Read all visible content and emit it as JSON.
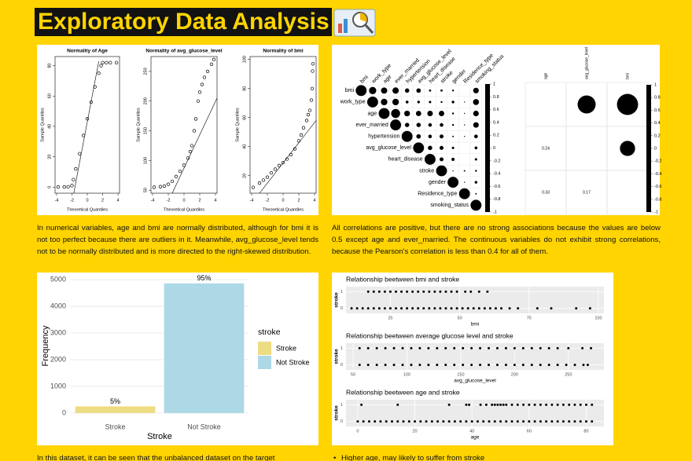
{
  "title": "Exploratory Data Analysis",
  "paragraphs": [
    "In numerical variables, age and bmi are normally distributed, although for bmi it is not too perfect because there are outliers in it. Meanwhile, avg_glucose_level tends not to be normally distributed and is more directed to the right-skewed distribution.",
    "All correlations are positive, but there are no strong associations because the values are below 0.5 except age and ever_married. The continuous variables do not exhibit strong correlations, because the Pearson's correlation is less than 0.4 for all of them.",
    "In this dataset, it can be seen that the unbalanced dataset on the target",
    "Higher age, may likely to suffer from stroke"
  ],
  "chart_data": [
    {
      "type": "qq",
      "title": "Normality of Age",
      "x_label": "Theoretical Quantiles",
      "y_label": "Sample Quantiles",
      "xlim": [
        -4.2,
        4.2
      ],
      "xticks": [
        -4,
        -2,
        0,
        2,
        4
      ],
      "ylim": [
        -4,
        86
      ],
      "yticks": [
        0,
        20,
        40,
        60,
        80
      ],
      "x": [
        -3.8,
        -3,
        -2.5,
        -2,
        -1.8,
        -1.5,
        -1,
        -0.5,
        0,
        0.5,
        1,
        1.5,
        1.8,
        2,
        2.5,
        3,
        3.8
      ],
      "y": [
        0.1,
        0.1,
        0.2,
        1,
        5,
        12,
        22,
        34,
        45,
        56,
        66,
        75,
        80,
        82,
        82,
        82,
        82
      ],
      "ref_line": {
        "x": [
          -1.8,
          1.5
        ],
        "y": [
          -5,
          83
        ]
      }
    },
    {
      "type": "qq",
      "title": "Normality of avg_glucose_level",
      "x_label": "Theoretical Quantiles",
      "y_label": "Sample Quantiles",
      "xlim": [
        -4.2,
        4.2
      ],
      "xticks": [
        -4,
        -2,
        0,
        2,
        4
      ],
      "ylim": [
        45,
        275
      ],
      "yticks": [
        50,
        100,
        150,
        200,
        250
      ],
      "x": [
        -3.8,
        -3,
        -2.5,
        -2,
        -1.5,
        -1,
        -0.5,
        0,
        0.5,
        0.8,
        1,
        1.3,
        1.5,
        1.8,
        2,
        2.3,
        2.6,
        3,
        3.5,
        3.8
      ],
      "y": [
        55,
        56,
        57,
        60,
        65,
        73,
        82,
        92,
        104,
        115,
        125,
        150,
        170,
        200,
        215,
        228,
        240,
        250,
        262,
        270
      ],
      "ref_line": {
        "x": [
          -1.5,
          4.2
        ],
        "y": [
          45,
          205
        ]
      }
    },
    {
      "type": "qq",
      "title": "Normality of bmi",
      "x_label": "Theoretical Quantiles",
      "y_label": "Sample Quantiles",
      "xlim": [
        -4.2,
        4.2
      ],
      "xticks": [
        -4,
        -2,
        0,
        2,
        4
      ],
      "ylim": [
        8,
        102
      ],
      "yticks": [
        20,
        40,
        60,
        80,
        100
      ],
      "x": [
        -3.8,
        -3,
        -2.5,
        -2,
        -1.5,
        -1,
        -0.5,
        0,
        0.5,
        1,
        1.5,
        2,
        2.3,
        2.6,
        3,
        3.2,
        3.4,
        3.6,
        3.7,
        3.75,
        3.8
      ],
      "y": [
        12,
        15,
        17,
        19,
        22,
        24.5,
        27,
        29,
        31.5,
        34.5,
        38.5,
        44,
        48,
        53,
        58,
        62,
        65,
        72,
        80,
        92,
        97
      ],
      "ref_line": {
        "x": [
          -3,
          4.2
        ],
        "y": [
          8,
          58
        ]
      }
    },
    {
      "type": "corrplot",
      "style": "upper",
      "labels": [
        "bmi",
        "work_type",
        "age",
        "ever_married",
        "hypertension",
        "avg_glucose_level",
        "heart_disease",
        "stroke",
        "gender",
        "Residence_type",
        "smoking_status"
      ],
      "matrix": [
        [
          1,
          0.45,
          0.33,
          0.34,
          0.16,
          0.17,
          0.04,
          0.04,
          0.03,
          0.0,
          0.27
        ],
        [
          null,
          1,
          0.36,
          0.36,
          0.07,
          0.06,
          0.05,
          0.03,
          0.06,
          0.01,
          0.3
        ],
        [
          null,
          null,
          1,
          0.68,
          0.28,
          0.24,
          0.26,
          0.25,
          0.03,
          0.01,
          0.27
        ],
        [
          null,
          null,
          null,
          1,
          0.16,
          0.16,
          0.11,
          0.11,
          0.03,
          0.01,
          0.26
        ],
        [
          null,
          null,
          null,
          null,
          1,
          0.17,
          0.11,
          0.13,
          0.02,
          0.01,
          0.11
        ],
        [
          null,
          null,
          null,
          null,
          null,
          1,
          0.16,
          0.13,
          0.05,
          0.0,
          0.07
        ],
        [
          null,
          null,
          null,
          null,
          null,
          null,
          1,
          0.13,
          0.09,
          0.0,
          0.05
        ],
        [
          null,
          null,
          null,
          null,
          null,
          null,
          null,
          1,
          0.01,
          0.02,
          0.03
        ],
        [
          null,
          null,
          null,
          null,
          null,
          null,
          null,
          null,
          1,
          0.01,
          0.06
        ],
        [
          null,
          null,
          null,
          null,
          null,
          null,
          null,
          null,
          null,
          1,
          0.02
        ],
        [
          null,
          null,
          null,
          null,
          null,
          null,
          null,
          null,
          null,
          null,
          1
        ]
      ],
      "colorbar_lim": [
        -1,
        1
      ],
      "colorbar_ticks": [
        1,
        0.8,
        0.6,
        0.4,
        0.2,
        0,
        -0.2,
        -0.4,
        -0.6,
        -0.8,
        -1
      ]
    },
    {
      "type": "corrplot",
      "style": "mixed",
      "labels": [
        "age",
        "avg_glucose_level",
        "bmi"
      ],
      "matrix": [
        [
          1,
          0.24,
          0.33
        ],
        [
          0.24,
          1,
          0.17
        ],
        [
          0.33,
          0.17,
          1
        ]
      ],
      "colorbar_lim": [
        -1,
        1
      ],
      "colorbar_ticks": [
        1,
        0.8,
        0.6,
        0.4,
        0.2,
        0,
        -0.2,
        -0.4,
        -0.6,
        -0.8,
        -1
      ]
    },
    {
      "type": "bar",
      "categories": [
        "Stroke",
        "Not Stroke"
      ],
      "values": [
        249,
        4861
      ],
      "colors": [
        "#EEDC82",
        "#ADD8E6"
      ],
      "percent_labels": [
        "5%",
        "95%"
      ],
      "x_label": "Stroke",
      "y_label": "Frequency",
      "legend_title": "stroke",
      "ylim": [
        -150,
        5180
      ],
      "yticks": [
        0,
        1000,
        2000,
        3000,
        4000,
        5000
      ],
      "grid": true
    },
    {
      "type": "strip",
      "title": "Relationship beetween bmi and stroke",
      "x_label": "bmi",
      "y_label": "stroke",
      "xlim": [
        9,
        102
      ],
      "xticks": [
        25,
        50,
        75,
        100
      ],
      "ylim": [
        -0.3,
        1.3
      ],
      "yticks": [
        0,
        1
      ],
      "points": [
        {
          "y": 0,
          "x": [
            11,
            13,
            15,
            17,
            19,
            21,
            23,
            25,
            27,
            29,
            31,
            33,
            35,
            37,
            39,
            41,
            43,
            45,
            47,
            49,
            51,
            53,
            55,
            57,
            59,
            61,
            63,
            65,
            68,
            71,
            78,
            83,
            92,
            97
          ]
        },
        {
          "y": 1,
          "x": [
            17,
            19,
            21,
            23,
            25,
            27,
            29,
            31,
            33,
            35,
            37,
            39,
            41,
            43,
            45,
            47,
            49,
            52,
            54,
            57,
            60
          ]
        }
      ]
    },
    {
      "type": "strip",
      "title": "Relationship beetween average glucose level and stroke",
      "x_label": "avg_glucose_level",
      "y_label": "stroke",
      "xlim": [
        43.4,
        283
      ],
      "xticks": [
        50,
        100,
        150,
        200,
        250
      ],
      "ylim": [
        -0.3,
        1.3
      ],
      "yticks": [
        0,
        1
      ],
      "points": [
        {
          "y": 0,
          "x": [
            56,
            64,
            72,
            80,
            88,
            96,
            104,
            112,
            120,
            128,
            136,
            144,
            152,
            160,
            168,
            176,
            184,
            192,
            200,
            208,
            216,
            224,
            232,
            240,
            248,
            256,
            264,
            268
          ]
        },
        {
          "y": 1,
          "x": [
            56,
            64,
            72,
            80,
            88,
            96,
            104,
            112,
            120,
            128,
            136,
            144,
            152,
            160,
            168,
            176,
            184,
            192,
            200,
            208,
            216,
            224,
            232,
            240,
            250,
            263,
            271
          ]
        }
      ]
    },
    {
      "type": "strip",
      "title": "Relationship beetween age and stroke",
      "x_label": "age",
      "y_label": "stroke",
      "xlim": [
        -4.1,
        86.2
      ],
      "xticks": [
        0,
        20,
        40,
        60,
        80
      ],
      "ylim": [
        -0.3,
        1.3
      ],
      "yticks": [
        0,
        1
      ],
      "points": [
        {
          "y": 0,
          "x": [
            0,
            2,
            4,
            6,
            8,
            10,
            12,
            14,
            16,
            18,
            20,
            22,
            24,
            26,
            28,
            30,
            32,
            34,
            36,
            38,
            40,
            42,
            44,
            46,
            48,
            50,
            52,
            54,
            56,
            58,
            60,
            62,
            64,
            66,
            68,
            70,
            72,
            74,
            76,
            78,
            80,
            82
          ]
        },
        {
          "y": 1,
          "x": [
            1.3,
            14,
            32,
            38,
            39,
            43,
            45,
            47,
            48,
            49,
            50,
            51,
            52,
            54,
            56,
            58,
            60,
            62,
            64,
            66,
            68,
            70,
            72,
            74,
            76,
            78,
            80,
            82
          ]
        }
      ]
    }
  ]
}
